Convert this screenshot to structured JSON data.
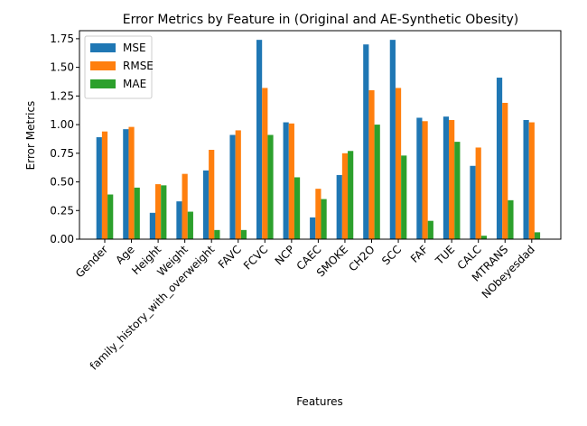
{
  "chart_data": {
    "type": "bar",
    "title": "Error Metrics by Feature in (Original and AE-Synthetic Obesity)",
    "xlabel": "Features",
    "ylabel": "Error Metrics",
    "ylim": [
      0,
      1.82
    ],
    "yticks": [
      "0.00",
      "0.25",
      "0.50",
      "0.75",
      "1.00",
      "1.25",
      "1.50",
      "1.75"
    ],
    "ytick_values": [
      0,
      0.25,
      0.5,
      0.75,
      1.0,
      1.25,
      1.5,
      1.75
    ],
    "grid": false,
    "legend_position": "top-left",
    "categories": [
      "Gender",
      "Age",
      "Height",
      "Weight",
      "family_history_with_overweight",
      "FAVC",
      "FCVC",
      "NCP",
      "CAEC",
      "SMOKE",
      "CH2O",
      "SCC",
      "FAF",
      "TUE",
      "CALC",
      "MTRANS",
      "NObeyesdad"
    ],
    "series": [
      {
        "name": "MSE",
        "color": "#1f77b4",
        "values": [
          0.89,
          0.96,
          0.23,
          0.33,
          0.6,
          0.91,
          1.74,
          1.02,
          0.19,
          0.56,
          1.7,
          1.74,
          1.06,
          1.07,
          0.64,
          1.41,
          1.04
        ]
      },
      {
        "name": "RMSE",
        "color": "#ff7f0e",
        "values": [
          0.94,
          0.98,
          0.48,
          0.57,
          0.78,
          0.95,
          1.32,
          1.01,
          0.44,
          0.75,
          1.3,
          1.32,
          1.03,
          1.04,
          0.8,
          1.19,
          1.02
        ]
      },
      {
        "name": "MAE",
        "color": "#2ca02c",
        "values": [
          0.39,
          0.45,
          0.47,
          0.24,
          0.08,
          0.08,
          0.91,
          0.54,
          0.35,
          0.77,
          1.0,
          0.73,
          0.16,
          0.85,
          0.03,
          0.34,
          0.06
        ]
      }
    ]
  }
}
